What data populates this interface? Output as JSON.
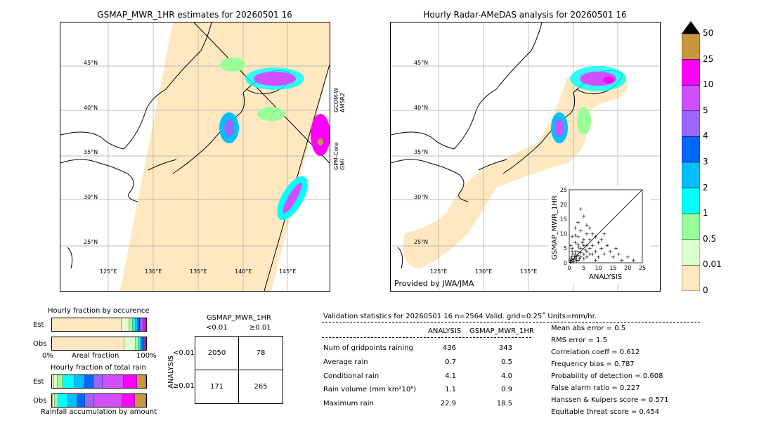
{
  "left_map": {
    "title": "GSMAP_MWR_1HR estimates for 20260501 16",
    "lat_labels": [
      "45°N",
      "40°N",
      "35°N",
      "30°N",
      "25°N"
    ],
    "lon_labels": [
      "125°E",
      "130°E",
      "135°E",
      "140°E",
      "145°E"
    ],
    "swath_labels": [
      "GCOM-W\nAMSR2",
      "GPM-Core\nGMI"
    ]
  },
  "right_map": {
    "title": "Hourly Radar-AMeDAS analysis for 20260501 16",
    "lat_labels": [
      "45°N",
      "40°N",
      "35°N",
      "30°N",
      "25°N"
    ],
    "lon_labels": [
      "125°E",
      "130°E",
      "135°E"
    ],
    "credit": "Provided by JWA/JMA"
  },
  "colorbar": {
    "labels": [
      "50",
      "25",
      "10",
      "5",
      "4",
      "3",
      "2",
      "1",
      "0.5",
      "0.01",
      "0"
    ],
    "colors": [
      "#c8963c",
      "#ff00ff",
      "#d050ff",
      "#9966ff",
      "#0066ff",
      "#00bfff",
      "#00ffff",
      "#99ff99",
      "#ddffcc",
      "#ffe8c0"
    ]
  },
  "fraction_occurrence": {
    "title": "Hourly fraction by occurence",
    "rows": [
      "Est",
      "Obs"
    ],
    "x_left": "0%",
    "x_mid": "Areal fraction",
    "x_right": "100%",
    "est": [
      0.74,
      0.08,
      0.04,
      0.03,
      0.02,
      0.02,
      0.02,
      0.02,
      0.02,
      0.01
    ],
    "obs": [
      0.78,
      0.12,
      0.03,
      0.02,
      0.02,
      0.01,
      0.01,
      0.005,
      0.005,
      0.0
    ]
  },
  "fraction_total": {
    "title": "Hourly fraction of total rain",
    "rows": [
      "Est",
      "Obs"
    ],
    "footer": "Rainfall accumulation by amount",
    "est": [
      0.02,
      0.04,
      0.06,
      0.12,
      0.1,
      0.1,
      0.1,
      0.22,
      0.14,
      0.1
    ],
    "obs": [
      0.01,
      0.02,
      0.04,
      0.1,
      0.1,
      0.08,
      0.1,
      0.3,
      0.13,
      0.12
    ]
  },
  "contingency": {
    "title": "GSMAP_MWR_1HR",
    "col_headers": [
      "<0.01",
      "≥0.01"
    ],
    "row_axis": "ANALYSIS",
    "row_headers": [
      "<0.01",
      "≥0.01"
    ],
    "cells": [
      [
        "2050",
        "78"
      ],
      [
        "171",
        "265"
      ]
    ]
  },
  "validation": {
    "header": "Validation statistics for 20260501 16  n=2564 Valid. grid=0.25˚ Units=mm/hr.",
    "col1": "ANALYSIS",
    "col2": "GSMAP_MWR_1HR",
    "rows": [
      {
        "label": "Num of gridpoints raining",
        "a": "436",
        "b": "343"
      },
      {
        "label": "Average rain",
        "a": "0.7",
        "b": "0.5"
      },
      {
        "label": "Conditional rain",
        "a": "4.1",
        "b": "4.0"
      },
      {
        "label": "Rain volume (mm km²10⁶)",
        "a": "1.1",
        "b": "0.9"
      },
      {
        "label": "Maximum rain",
        "a": "22.9",
        "b": "18.5"
      }
    ],
    "scores": [
      "Mean abs error =    0.5",
      "RMS error =    1.5",
      "Correlation coeff =  0.612",
      "Frequency bias =  0.787",
      "Probability of detection =  0.608",
      "False alarm ratio =  0.227",
      "Hanssen & Kuipers score =  0.571",
      "Equitable threat score =  0.454"
    ]
  },
  "chart_data": {
    "type": "scatter",
    "xlabel": "ANALYSIS",
    "ylabel": "GSMAP_MWR_1HR",
    "xlim": [
      0,
      25
    ],
    "ylim": [
      0,
      25
    ],
    "ticks": [
      "0",
      "5",
      "10",
      "15",
      "20",
      "25"
    ],
    "points": [
      [
        0.5,
        0.3
      ],
      [
        1,
        0.8
      ],
      [
        1.5,
        1.2
      ],
      [
        2,
        1.5
      ],
      [
        0.8,
        2
      ],
      [
        1.2,
        3
      ],
      [
        2.5,
        2
      ],
      [
        3,
        1
      ],
      [
        3,
        4
      ],
      [
        4,
        2
      ],
      [
        4,
        5
      ],
      [
        5,
        3
      ],
      [
        5,
        6
      ],
      [
        6,
        4
      ],
      [
        6,
        2
      ],
      [
        7,
        5
      ],
      [
        7,
        8
      ],
      [
        8,
        3
      ],
      [
        8,
        6
      ],
      [
        9,
        4
      ],
      [
        10,
        7
      ],
      [
        10,
        2
      ],
      [
        11,
        5
      ],
      [
        12,
        3
      ],
      [
        13,
        6
      ],
      [
        14,
        4
      ],
      [
        15,
        2
      ],
      [
        16,
        5
      ],
      [
        17,
        3
      ],
      [
        18,
        1
      ],
      [
        20,
        2
      ],
      [
        22,
        1
      ],
      [
        1,
        5
      ],
      [
        2,
        7
      ],
      [
        3,
        9
      ],
      [
        4,
        11
      ],
      [
        2,
        12
      ],
      [
        3,
        14
      ],
      [
        5,
        8
      ],
      [
        6,
        10
      ],
      [
        1,
        9
      ],
      [
        0.5,
        6
      ],
      [
        1,
        4
      ],
      [
        2,
        3
      ],
      [
        3,
        2.5
      ],
      [
        4,
        3.5
      ],
      [
        5,
        1.5
      ],
      [
        6,
        6
      ],
      [
        7,
        3
      ],
      [
        9,
        1
      ],
      [
        1.5,
        0.5
      ],
      [
        2.5,
        0.8
      ],
      [
        3.5,
        1.5
      ],
      [
        0.3,
        1
      ],
      [
        0.7,
        1.5
      ],
      [
        1.8,
        2.2
      ],
      [
        2.2,
        4
      ],
      [
        3.2,
        5.5
      ],
      [
        4.5,
        7
      ],
      [
        5.5,
        4.5
      ],
      [
        8,
        10
      ],
      [
        6,
        13
      ],
      [
        5,
        16
      ],
      [
        4,
        18.5
      ],
      [
        7,
        12
      ],
      [
        9,
        9
      ],
      [
        11,
        8
      ],
      [
        12,
        10
      ],
      [
        3,
        6.5
      ],
      [
        2,
        9.5
      ]
    ]
  }
}
